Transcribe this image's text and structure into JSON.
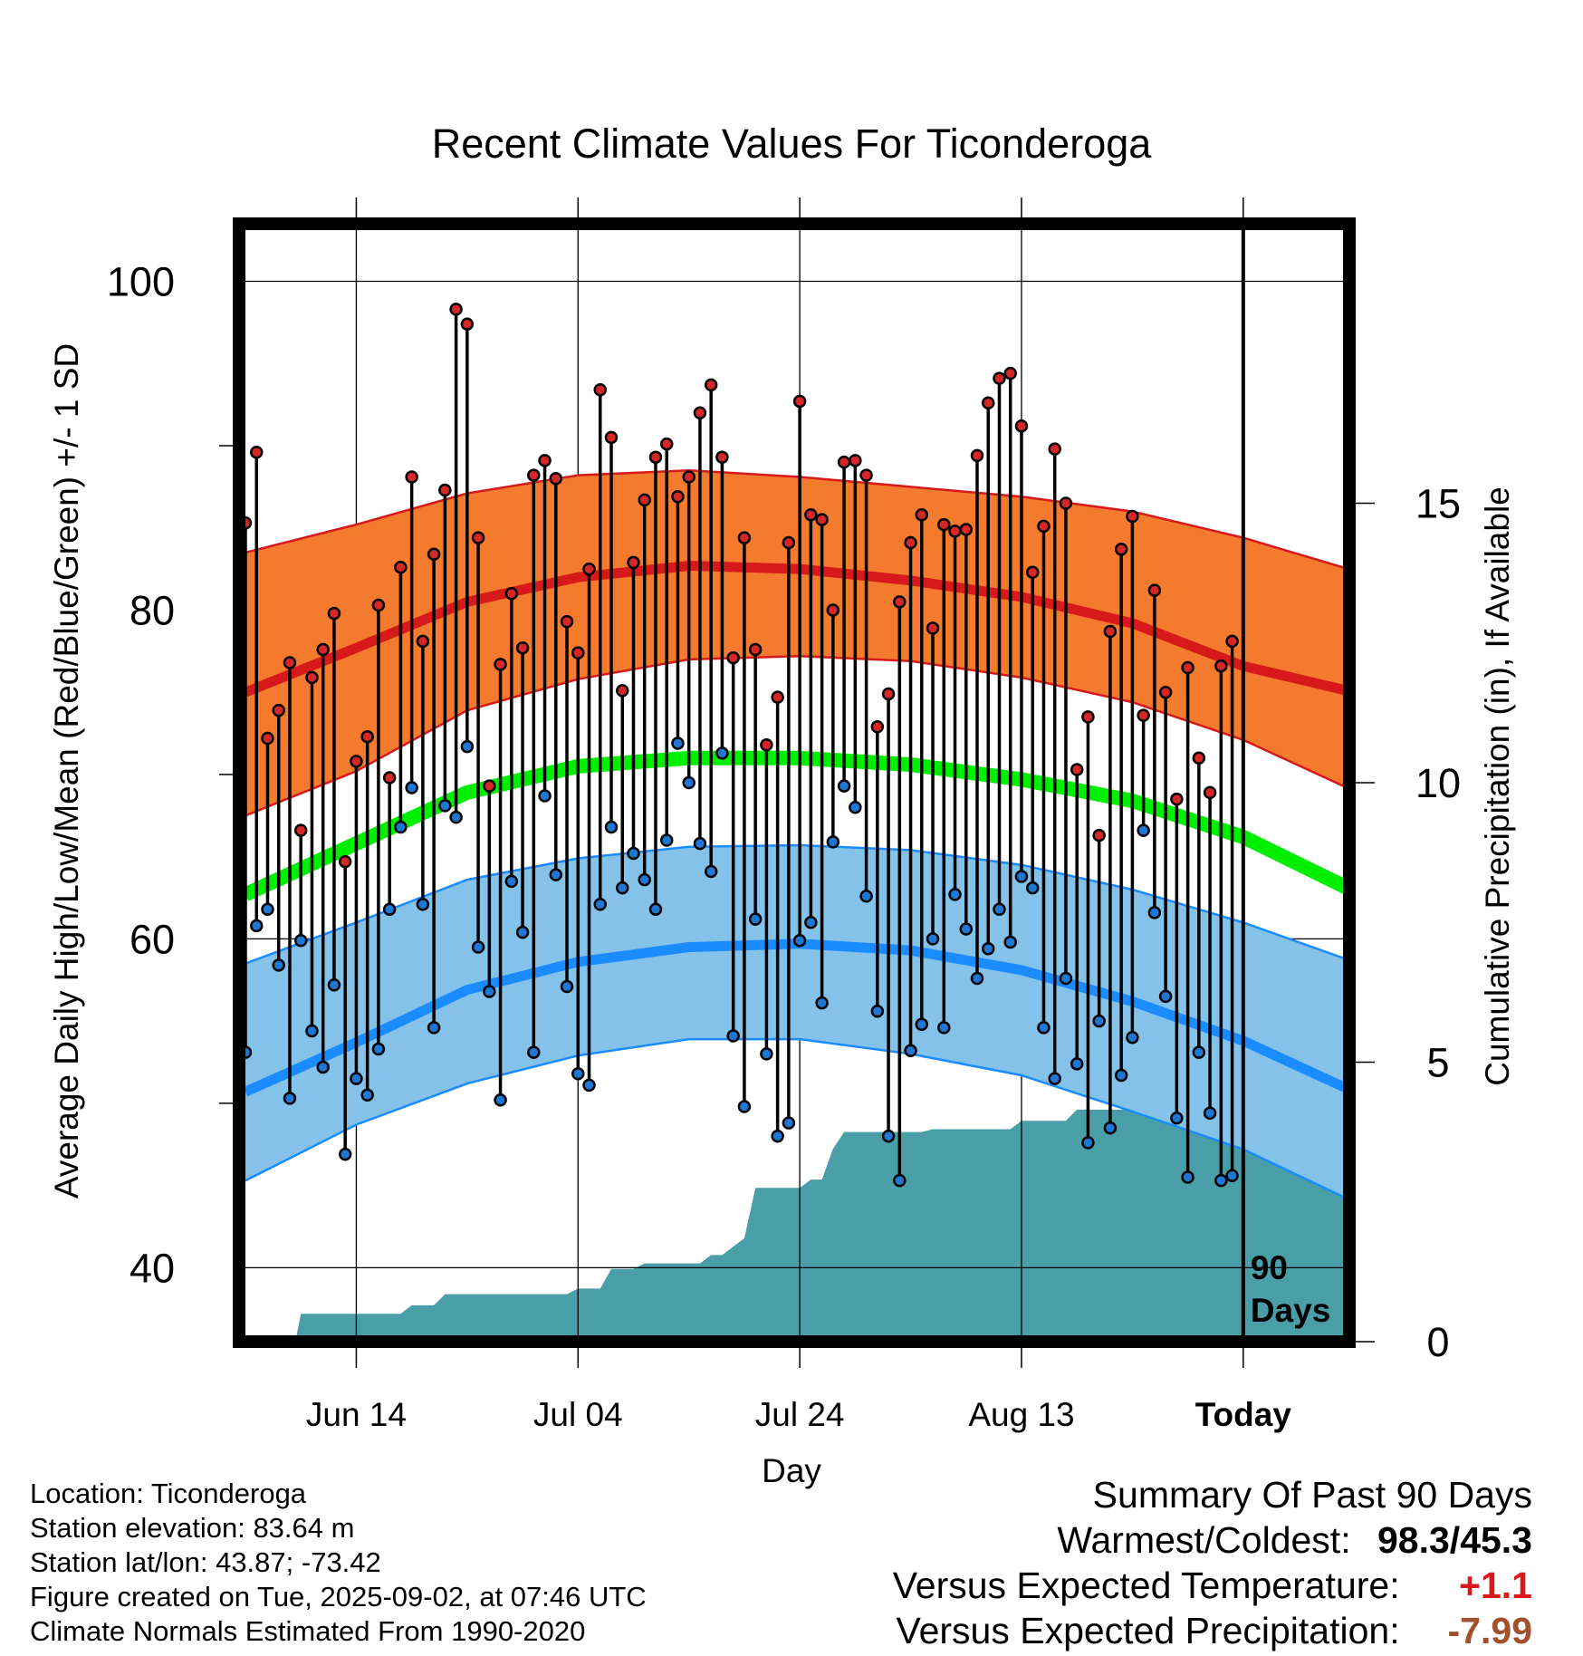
{
  "chart_data": {
    "type": "line",
    "title": "Recent Climate Values For Ticonderoga",
    "xlabel": "Day",
    "ylabel": "Average Daily High/Low/Mean (Red/Blue/Green) +/- 1 SD",
    "y2label": "Cumulative Precipitation (in), If Available",
    "ylim": [
      35.5,
      103.5
    ],
    "yticks": [
      40,
      60,
      80,
      100
    ],
    "y2lim": [
      0,
      20
    ],
    "y2ticks": [
      0,
      5,
      10,
      15
    ],
    "x_tick_labels": [
      "Jun 14",
      "Jul 04",
      "Jul 24",
      "Aug 13",
      "Today"
    ],
    "x_tick_days": [
      10,
      30,
      50,
      70,
      90
    ],
    "today_day": 90,
    "today_label_lines": [
      "90",
      "Days"
    ],
    "grid": true,
    "colors": {
      "high": "#d7191c",
      "high_band": "#f47b2e",
      "low": "#1a8cff",
      "low_band": "#84c2ea",
      "mean": "#00ee00",
      "precip": "#4a9ea8",
      "observed_high_marker": "#d62728",
      "observed_low_marker": "#1f77d4"
    },
    "normals": {
      "day": [
        0,
        10,
        20,
        30,
        40,
        50,
        60,
        70,
        80,
        90,
        100
      ],
      "high_mean": [
        75.0,
        77.7,
        80.5,
        82.0,
        82.7,
        82.5,
        81.8,
        80.8,
        79.2,
        76.6,
        75.0
      ],
      "high_sd_upper": [
        83.5,
        85.2,
        87.1,
        88.2,
        88.5,
        88.1,
        87.5,
        86.9,
        86.0,
        84.4,
        82.4
      ],
      "high_sd_lower": [
        67.5,
        70.2,
        73.9,
        75.8,
        77.0,
        77.2,
        76.9,
        75.9,
        74.4,
        72.1,
        69.0
      ],
      "mean": [
        62.7,
        65.8,
        68.9,
        70.5,
        71.0,
        71.0,
        70.6,
        69.7,
        68.4,
        66.2,
        62.9
      ],
      "low_mean": [
        50.7,
        53.7,
        56.9,
        58.6,
        59.5,
        59.7,
        59.3,
        58.1,
        56.2,
        53.8,
        50.7
      ],
      "low_sd_upper": [
        58.5,
        61.0,
        63.6,
        64.9,
        65.6,
        65.7,
        65.4,
        64.5,
        63.0,
        61.0,
        58.6
      ],
      "low_sd_lower": [
        45.3,
        48.7,
        51.2,
        52.9,
        53.9,
        53.9,
        53.0,
        51.7,
        49.5,
        47.2,
        44.0
      ]
    },
    "series": [
      {
        "name": "High",
        "x": [
          0,
          1,
          2,
          3,
          4,
          5,
          6,
          7,
          8,
          9,
          10,
          11,
          12,
          13,
          14,
          15,
          16,
          17,
          18,
          19,
          20,
          21,
          22,
          23,
          24,
          25,
          26,
          27,
          28,
          29,
          30,
          31,
          32,
          33,
          34,
          35,
          36,
          37,
          38,
          39,
          40,
          41,
          42,
          43,
          44,
          45,
          46,
          47,
          48,
          49,
          50,
          51,
          52,
          53,
          54,
          55,
          56,
          57,
          58,
          59,
          60,
          61,
          62,
          63,
          64,
          65,
          66,
          67,
          68,
          69,
          70,
          71,
          72,
          73,
          74,
          75,
          76,
          77,
          78,
          79,
          80,
          81,
          82,
          83,
          84,
          85,
          86,
          87,
          88,
          89
        ],
        "values": [
          85.3,
          89.6,
          72.2,
          73.9,
          76.8,
          66.6,
          75.9,
          77.6,
          79.8,
          64.7,
          70.8,
          72.3,
          80.3,
          69.8,
          82.6,
          88.1,
          78.1,
          83.4,
          87.3,
          98.3,
          97.4,
          84.4,
          69.3,
          76.7,
          81.0,
          77.7,
          88.2,
          89.1,
          88.0,
          79.3,
          77.4,
          82.5,
          93.4,
          90.5,
          75.1,
          82.9,
          86.7,
          89.3,
          90.1,
          86.9,
          88.1,
          92.0,
          93.7,
          89.3,
          77.1,
          84.4,
          77.6,
          71.8,
          74.7,
          84.1,
          92.7,
          85.8,
          85.5,
          80.0,
          89.0,
          89.1,
          88.2,
          72.9,
          74.9,
          80.5,
          84.1,
          85.8,
          78.9,
          85.2,
          84.8,
          84.9,
          89.4,
          92.6,
          94.1,
          94.4,
          91.2,
          82.3,
          85.1,
          89.8,
          86.5,
          70.3,
          73.5,
          66.3,
          78.7,
          83.7,
          85.7,
          73.6,
          81.2,
          75.0,
          68.5,
          76.5,
          71.0,
          68.9,
          76.6,
          78.1
        ]
      },
      {
        "name": "Low",
        "x": [
          0,
          1,
          2,
          3,
          4,
          5,
          6,
          7,
          8,
          9,
          10,
          11,
          12,
          13,
          14,
          15,
          16,
          17,
          18,
          19,
          20,
          21,
          22,
          23,
          24,
          25,
          26,
          27,
          28,
          29,
          30,
          31,
          32,
          33,
          34,
          35,
          36,
          37,
          38,
          39,
          40,
          41,
          42,
          43,
          44,
          45,
          46,
          47,
          48,
          49,
          50,
          51,
          52,
          53,
          54,
          55,
          56,
          57,
          58,
          59,
          60,
          61,
          62,
          63,
          64,
          65,
          66,
          67,
          68,
          69,
          70,
          71,
          72,
          73,
          74,
          75,
          76,
          77,
          78,
          79,
          80,
          81,
          82,
          83,
          84,
          85,
          86,
          87,
          88,
          89
        ],
        "values": [
          53.1,
          60.8,
          61.8,
          58.4,
          50.3,
          59.9,
          54.4,
          52.2,
          57.2,
          46.9,
          51.5,
          50.5,
          53.3,
          61.8,
          66.8,
          69.2,
          62.1,
          54.6,
          68.1,
          67.4,
          71.7,
          59.5,
          56.8,
          50.2,
          63.5,
          60.4,
          53.1,
          68.7,
          63.9,
          57.1,
          51.8,
          51.1,
          62.1,
          66.8,
          63.1,
          65.2,
          63.6,
          61.8,
          66.0,
          71.9,
          69.5,
          65.8,
          64.1,
          71.3,
          54.1,
          49.8,
          61.2,
          53.0,
          48.0,
          48.8,
          59.9,
          61.0,
          56.1,
          65.9,
          69.3,
          68.0,
          62.6,
          55.6,
          48.0,
          45.3,
          53.2,
          54.8,
          60.0,
          54.6,
          62.7,
          60.6,
          57.6,
          59.4,
          61.8,
          59.8,
          63.8,
          63.1,
          54.6,
          51.5,
          57.6,
          52.4,
          47.6,
          55.0,
          48.5,
          51.7,
          54.0,
          66.6,
          61.6,
          56.5,
          49.1,
          45.5,
          53.1,
          49.4,
          45.3,
          45.6
        ]
      }
    ],
    "precipitation": {
      "day": [
        0,
        4.5,
        5,
        14,
        15,
        17,
        18,
        29,
        30,
        32,
        33,
        35,
        36,
        41,
        42,
        43,
        45,
        46,
        50,
        51,
        52,
        53,
        54,
        61,
        62,
        69,
        70,
        74,
        75,
        82,
        83,
        84,
        85,
        86,
        90,
        99
      ],
      "cumulative": [
        0,
        0,
        0.5,
        0.5,
        0.65,
        0.65,
        0.85,
        0.85,
        0.95,
        0.95,
        1.3,
        1.3,
        1.4,
        1.4,
        1.55,
        1.55,
        1.85,
        2.75,
        2.75,
        2.9,
        2.9,
        3.45,
        3.75,
        3.75,
        3.8,
        3.8,
        3.95,
        3.95,
        4.15,
        4.15,
        4.3,
        4.45,
        4.55,
        4.6,
        4.6,
        4.6
      ]
    }
  },
  "info": {
    "location": "Location: Ticonderoga",
    "elevation": "Station elevation: 83.64 m",
    "latlon": "Station lat/lon: 43.87; -73.42",
    "created": "Figure created on Tue, 2025-09-02, at 07:46 UTC",
    "normals": "Climate Normals Estimated From 1990-2020"
  },
  "summary": {
    "title": "Summary Of Past 90 Days",
    "warm_cold_label": "Warmest/Coldest:",
    "warm_cold_value": "98.3/45.3",
    "temp_label": "Versus Expected Temperature:",
    "temp_value": "+1.1",
    "temp_color": "#d7191c",
    "precip_label": "Versus Expected Precipitation:",
    "precip_value": "-7.99",
    "precip_color": "#a0522d"
  }
}
